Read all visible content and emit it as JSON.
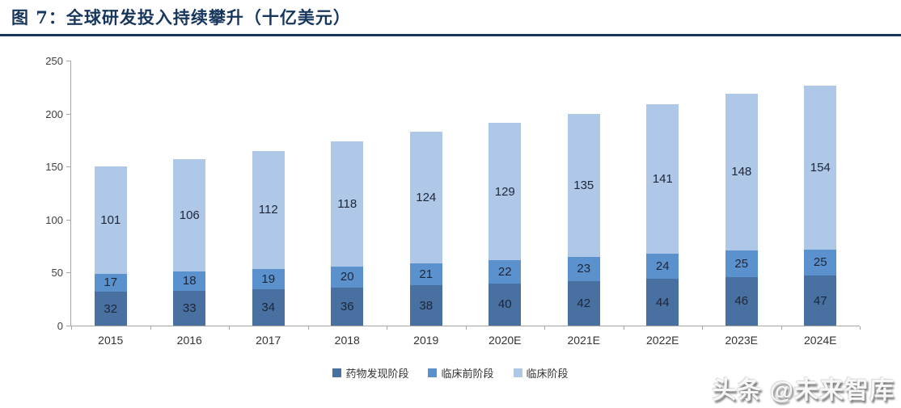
{
  "header": {
    "title": "图 7：全球研发投入持续攀升（十亿美元）",
    "title_color": "#17365D"
  },
  "watermark": {
    "text": "头条 @未来智库"
  },
  "chart_data": {
    "type": "bar",
    "stacked": true,
    "title": "全球研发投入持续攀升（十亿美元）",
    "categories": [
      "2015",
      "2016",
      "2017",
      "2018",
      "2019",
      "2020E",
      "2021E",
      "2022E",
      "2023E",
      "2024E"
    ],
    "series": [
      {
        "name": "药物发现阶段",
        "color": "#4870A0",
        "values": [
          32,
          33,
          34,
          36,
          38,
          40,
          42,
          44,
          46,
          47
        ]
      },
      {
        "name": "临床前阶段",
        "color": "#5B91CD",
        "values": [
          17,
          18,
          19,
          20,
          21,
          22,
          23,
          24,
          25,
          25
        ]
      },
      {
        "name": "临床阶段",
        "color": "#AFC8E8",
        "values": [
          101,
          106,
          112,
          118,
          124,
          129,
          135,
          141,
          148,
          154
        ]
      }
    ],
    "totals": [
      150,
      157,
      165,
      174,
      183,
      191,
      200,
      209,
      219,
      226
    ],
    "xlabel": "",
    "ylabel": "",
    "ylim": [
      0,
      250
    ],
    "yticks": [
      0,
      50,
      100,
      150,
      200,
      250
    ],
    "grid": false,
    "legend_position": "bottom",
    "value_labels": "inside-center",
    "axis_color": "#a6a6a6"
  }
}
